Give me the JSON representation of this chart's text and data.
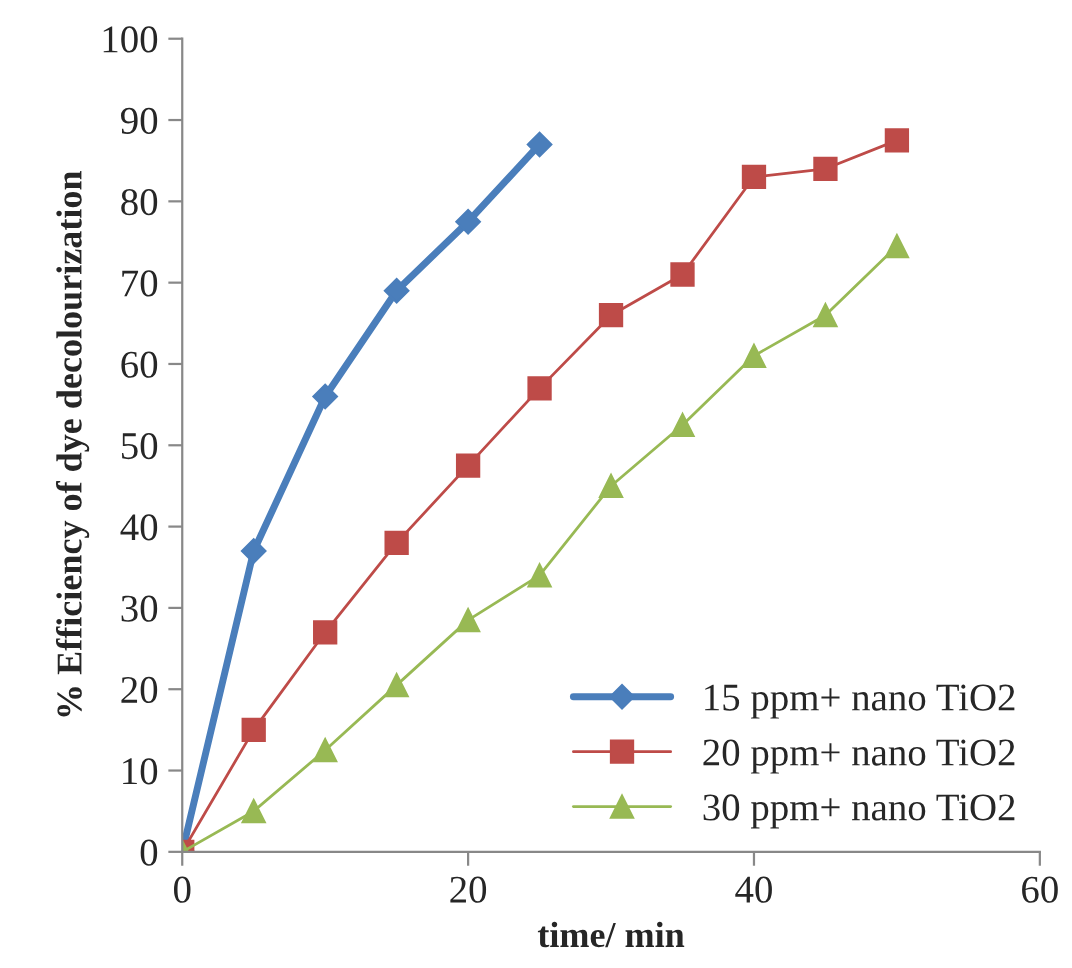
{
  "chart_data": {
    "type": "line",
    "xlabel": "time/ min",
    "ylabel": "% Efficiency of dye decolourization",
    "xlim": [
      0,
      60
    ],
    "xticks": [
      0,
      20,
      40,
      60
    ],
    "ylim": [
      0,
      100
    ],
    "yticks": [
      0,
      10,
      20,
      30,
      40,
      50,
      60,
      70,
      80,
      90,
      100
    ],
    "grid": false,
    "legend": "bottom right",
    "line_style": "solid",
    "series": [
      {
        "name": "15 ppm+ nano TiO2",
        "color": "#4a7ebb",
        "marker": "diamond",
        "x": [
          0,
          5,
          10,
          15,
          20,
          25
        ],
        "values": [
          0,
          37,
          56,
          69,
          77.5,
          87
        ]
      },
      {
        "name": "20 ppm+ nano TiO2",
        "color": "#be4b48",
        "marker": "square",
        "x": [
          0,
          5,
          10,
          15,
          20,
          25,
          30,
          35,
          40,
          45,
          50
        ],
        "values": [
          0,
          15,
          27,
          38,
          47.5,
          57,
          66,
          71,
          83,
          84,
          87.5
        ]
      },
      {
        "name": "30 ppm+ nano TiO2",
        "color": "#98b954",
        "marker": "triangle",
        "x": [
          0,
          5,
          10,
          15,
          20,
          25,
          30,
          35,
          40,
          45,
          50
        ],
        "values": [
          0,
          5,
          12.5,
          20.5,
          28.5,
          34,
          45,
          52.5,
          61,
          66,
          74.5
        ]
      }
    ]
  }
}
